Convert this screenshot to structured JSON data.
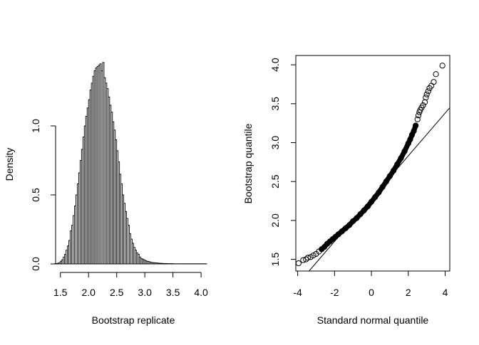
{
  "chart_data": [
    {
      "type": "histogram",
      "title": "",
      "xlabel": "Bootstrap replicate",
      "ylabel": "Density",
      "xlim": [
        1.25,
        4.1
      ],
      "ylim": [
        0,
        1.4
      ],
      "xticks": [
        1.5,
        2.0,
        2.5,
        3.0,
        3.5,
        4.0
      ],
      "xtick_labels": [
        "1.5",
        "2.0",
        "2.5",
        "3.0",
        "3.5",
        "4.0"
      ],
      "yticks": [
        0.0,
        0.5,
        1.0
      ],
      "ytick_labels": [
        "0.0",
        "0.5",
        "1.0"
      ],
      "bin_start": 1.4,
      "bin_width": 0.025,
      "densities": [
        0.002,
        0.003,
        0.005,
        0.01,
        0.02,
        0.03,
        0.05,
        0.07,
        0.1,
        0.13,
        0.17,
        0.24,
        0.28,
        0.35,
        0.42,
        0.5,
        0.58,
        0.66,
        0.75,
        0.83,
        0.92,
        1.0,
        1.07,
        1.13,
        1.19,
        1.26,
        1.31,
        1.36,
        1.4,
        1.42,
        1.43,
        1.44,
        1.45,
        1.4,
        1.46,
        1.35,
        1.31,
        1.27,
        1.21,
        1.15,
        1.1,
        1.03,
        0.97,
        0.9,
        0.82,
        0.74,
        0.65,
        0.58,
        0.5,
        0.44,
        0.38,
        0.33,
        0.28,
        0.22,
        0.18,
        0.15,
        0.12,
        0.1,
        0.08,
        0.07,
        0.05,
        0.04,
        0.035,
        0.03,
        0.025,
        0.02,
        0.018,
        0.015,
        0.012,
        0.01,
        0.009,
        0.008,
        0.007,
        0.006,
        0.005,
        0.004,
        0.004,
        0.003,
        0.003,
        0.003,
        0.002,
        0.002,
        0.002,
        0.002,
        0.001,
        0.001,
        0.001,
        0.001,
        0.001,
        0.001,
        0.001,
        0.001,
        0.001,
        0.001,
        0.001,
        0.001,
        0.001,
        0.001,
        0.001,
        0.001,
        0.001,
        0.001,
        0.001,
        0.001,
        0.001,
        0.001,
        0.001,
        0.001
      ]
    },
    {
      "type": "scatter",
      "title": "",
      "xlabel": "Standard normal quantile",
      "ylabel": "Bootstrap quantile",
      "xlim": [
        -4.1,
        4.25
      ],
      "ylim": [
        1.35,
        4.12
      ],
      "xticks": [
        -4,
        -2,
        0,
        2,
        4
      ],
      "xtick_labels": [
        "-4",
        "-2",
        "0",
        "2",
        "4"
      ],
      "yticks": [
        1.5,
        2.0,
        2.5,
        3.0,
        3.5,
        4.0
      ],
      "ytick_labels": [
        "1.5",
        "2.0",
        "2.5",
        "3.0",
        "3.5",
        "4.0"
      ],
      "reference_line": {
        "intercept": 2.28,
        "slope": 0.275
      },
      "points": [
        [
          -3.95,
          1.45
        ],
        [
          -3.7,
          1.49
        ],
        [
          -3.55,
          1.5
        ],
        [
          -3.45,
          1.52
        ],
        [
          -3.3,
          1.53
        ],
        [
          -3.15,
          1.55
        ],
        [
          -3.0,
          1.57
        ],
        [
          -2.85,
          1.6
        ],
        [
          -2.7,
          1.63
        ],
        [
          -2.55,
          1.66
        ],
        [
          -2.4,
          1.7
        ],
        [
          -2.25,
          1.73
        ],
        [
          -2.1,
          1.76
        ],
        [
          -1.95,
          1.79
        ],
        [
          -1.8,
          1.82
        ],
        [
          -1.6,
          1.86
        ],
        [
          -1.4,
          1.9
        ],
        [
          -1.2,
          1.94
        ],
        [
          -1.0,
          1.99
        ],
        [
          -0.8,
          2.03
        ],
        [
          -0.6,
          2.08
        ],
        [
          -0.4,
          2.13
        ],
        [
          -0.2,
          2.18
        ],
        [
          0.0,
          2.24
        ],
        [
          0.2,
          2.3
        ],
        [
          0.4,
          2.36
        ],
        [
          0.6,
          2.43
        ],
        [
          0.8,
          2.5
        ],
        [
          1.0,
          2.57
        ],
        [
          1.2,
          2.64
        ],
        [
          1.4,
          2.72
        ],
        [
          1.6,
          2.8
        ],
        [
          1.8,
          2.89
        ],
        [
          2.0,
          2.99
        ],
        [
          2.1,
          3.04
        ],
        [
          2.2,
          3.1
        ],
        [
          2.3,
          3.15
        ],
        [
          2.4,
          3.22
        ],
        [
          2.5,
          3.3
        ],
        [
          2.55,
          3.35
        ],
        [
          2.6,
          3.39
        ],
        [
          2.65,
          3.42
        ],
        [
          2.72,
          3.45
        ],
        [
          2.8,
          3.48
        ],
        [
          2.9,
          3.52
        ],
        [
          2.95,
          3.58
        ],
        [
          3.0,
          3.62
        ],
        [
          3.08,
          3.66
        ],
        [
          3.15,
          3.7
        ],
        [
          3.25,
          3.73
        ],
        [
          3.38,
          3.78
        ],
        [
          3.5,
          3.88
        ],
        [
          3.85,
          3.99
        ]
      ]
    }
  ]
}
